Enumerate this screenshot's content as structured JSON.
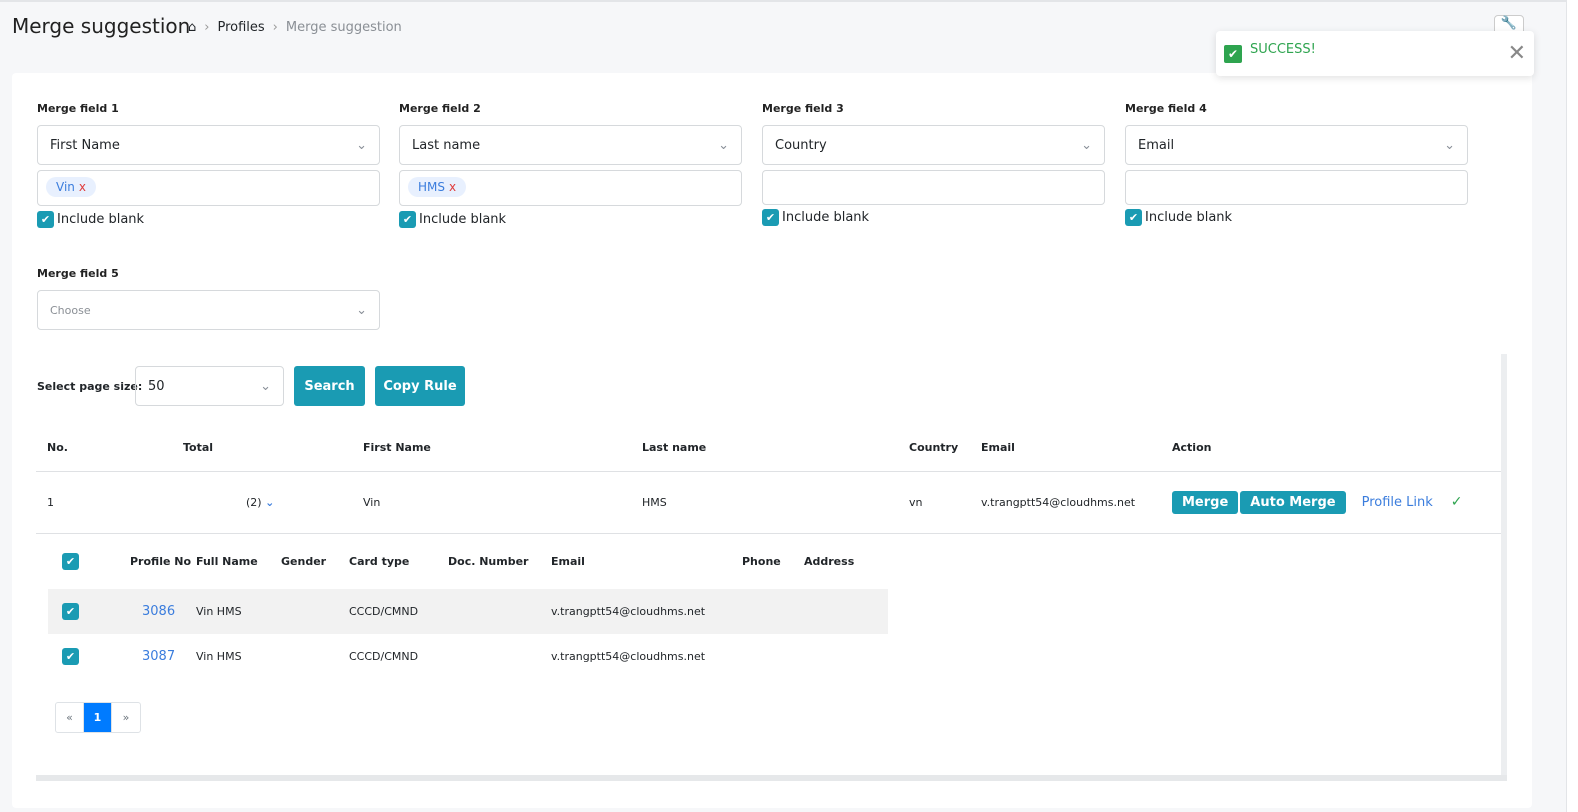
{
  "header": {
    "title": "Merge suggestion",
    "breadcrumb": [
      "Profiles",
      "Merge suggestion"
    ]
  },
  "fields": [
    {
      "label": "Merge field 1",
      "value": "First Name",
      "tags": [
        "Vin"
      ],
      "include_blank": "Include blank"
    },
    {
      "label": "Merge field 2",
      "value": "Last name",
      "tags": [
        "HMS"
      ],
      "include_blank": "Include blank"
    },
    {
      "label": "Merge field 3",
      "value": "Country",
      "tags": [],
      "include_blank": "Include blank"
    },
    {
      "label": "Merge field 4",
      "value": "Email",
      "tags": [],
      "include_blank": "Include blank"
    },
    {
      "label": "Merge field 5",
      "placeholder": "Choose"
    }
  ],
  "toolbar": {
    "page_size_label": "Select page size:",
    "page_size": "50",
    "search": "Search",
    "copy_rule": "Copy Rule"
  },
  "table": {
    "headers": [
      "No.",
      "Total",
      "First Name",
      "Last name",
      "Country",
      "Email",
      "Action"
    ],
    "row": {
      "no": "1",
      "total": "(2)",
      "first_name": "Vin",
      "last_name": "HMS",
      "country": "vn",
      "email": "v.trangptt54@cloudhms.net",
      "merge": "Merge",
      "auto_merge": "Auto Merge",
      "profile_link": "Profile Link"
    }
  },
  "subtable": {
    "headers": [
      "Profile No",
      "Full Name",
      "Gender",
      "Card type",
      "Doc. Number",
      "Email",
      "Phone",
      "Address"
    ],
    "rows": [
      {
        "profile_no": "3086",
        "full_name": "Vin HMS",
        "gender": "",
        "card_type": "CCCD/CMND",
        "doc": "",
        "email": "v.trangptt54@cloudhms.net",
        "phone": "",
        "address": ""
      },
      {
        "profile_no": "3087",
        "full_name": "Vin HMS",
        "gender": "",
        "card_type": "CCCD/CMND",
        "doc": "",
        "email": "v.trangptt54@cloudhms.net",
        "phone": "",
        "address": ""
      }
    ]
  },
  "pagination": {
    "prev": "«",
    "current": "1",
    "next": "»"
  },
  "toast": {
    "message": "SUCCESS!",
    "status_color": "#2ea44f"
  },
  "accent_color": "#1a9bb3"
}
